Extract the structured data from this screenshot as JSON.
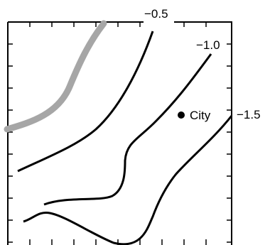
{
  "contour_labels": [
    "−0.5",
    "−1.0",
    "−1.5"
  ],
  "marker": {
    "label": "City"
  },
  "colors": {
    "contour": "#000000",
    "highlight_contour": "#a6a6a6",
    "frame": "#000000"
  }
}
